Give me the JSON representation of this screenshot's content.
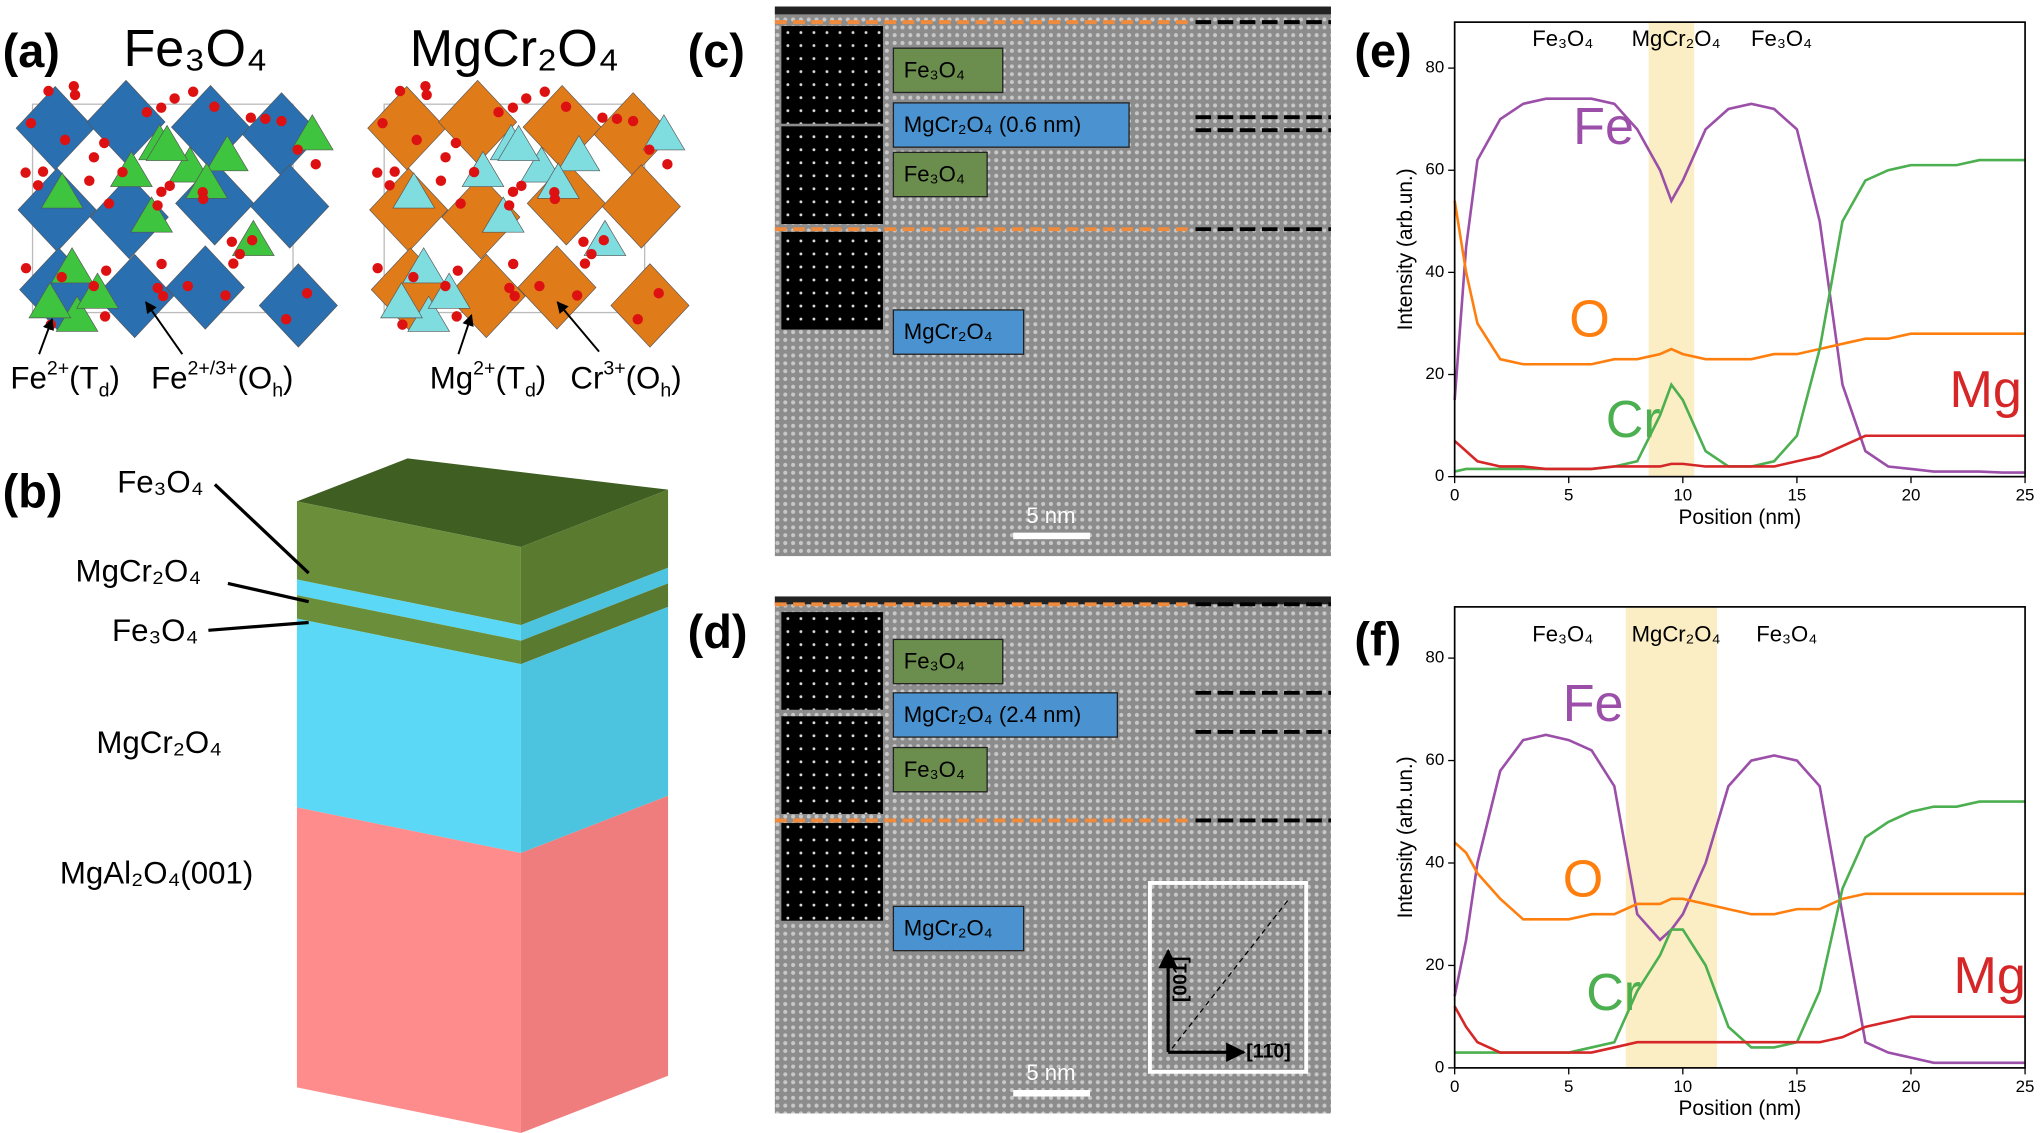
{
  "panels": {
    "a": {
      "label": "(a)",
      "titles": [
        "Fe₃O₄",
        "MgCr₂O₄"
      ],
      "ion_labels": [
        [
          {
            "t": "Fe"
          },
          {
            "sup": "2+"
          },
          {
            "t": "(T"
          },
          {
            "sub": "d"
          },
          {
            "t": ")"
          }
        ],
        [
          {
            "t": "Fe"
          },
          {
            "sup": "2+/3+"
          },
          {
            "t": "(O"
          },
          {
            "sub": "h"
          },
          {
            "t": ")"
          }
        ],
        [
          {
            "t": "Mg"
          },
          {
            "sup": "2+"
          },
          {
            "t": "(T"
          },
          {
            "sub": "d"
          },
          {
            "t": ")"
          }
        ],
        [
          {
            "t": "Cr"
          },
          {
            "sup": "3+"
          },
          {
            "t": "(O"
          },
          {
            "sub": "h"
          },
          {
            "t": ")"
          }
        ]
      ]
    },
    "b": {
      "label": "(b)",
      "layers": [
        "Fe₃O₄",
        "MgCr₂O₄",
        "Fe₃O₄",
        "MgCr₂O₄",
        "MgAl₂O₄(001)"
      ]
    },
    "c": {
      "label": "(c)",
      "boxes": [
        "Fe₃O₄",
        "MgCr₂O₄ (0.6 nm)",
        "Fe₃O₄",
        "MgCr₂O₄"
      ],
      "scale_bar": "5 nm"
    },
    "d": {
      "label": "(d)",
      "boxes": [
        "Fe₃O₄",
        "MgCr₂O₄ (2.4 nm)",
        "Fe₃O₄",
        "MgCr₂O₄"
      ],
      "scale_bar": "5 nm",
      "inset_axes": [
        "[001]",
        "[11̄0]"
      ]
    }
  },
  "chart_data": [
    {
      "type": "line",
      "panel_label": "(e)",
      "top_labels": [
        "Fe₃O₄",
        "MgCr₂O₄",
        "Fe₃O₄"
      ],
      "xlabel": "Position (nm)",
      "ylabel": "Intensity (arb.un.)",
      "xlim": [
        0,
        25
      ],
      "ylim": [
        0,
        89
      ],
      "xticks": [
        0,
        5,
        10,
        15,
        20,
        25
      ],
      "yticks": [
        0,
        20,
        40,
        60,
        80
      ],
      "highlight": [
        8.5,
        10.5
      ],
      "x": [
        0,
        0.5,
        1,
        2,
        3,
        4,
        5,
        6,
        7,
        8,
        9,
        9.5,
        10,
        11,
        12,
        13,
        14,
        15,
        16,
        17,
        18,
        19,
        20,
        21,
        22,
        23,
        24,
        25
      ],
      "series": [
        {
          "name": "Fe",
          "color": "#9b4fa8",
          "values": [
            15,
            45,
            62,
            70,
            73,
            74,
            74,
            74,
            73,
            68,
            60,
            54,
            58,
            68,
            72,
            73,
            72,
            68,
            50,
            18,
            5,
            2,
            1.5,
            1,
            1,
            1,
            0.8,
            0.8
          ]
        },
        {
          "name": "O",
          "color": "#ff7f0e",
          "values": [
            54,
            40,
            30,
            23,
            22,
            22,
            22,
            22,
            23,
            23,
            24,
            25,
            24,
            23,
            23,
            23,
            24,
            24,
            25,
            26,
            27,
            27,
            28,
            28,
            28,
            28,
            28,
            28
          ]
        },
        {
          "name": "Cr",
          "color": "#4caf50",
          "values": [
            1,
            1.5,
            1.5,
            1.5,
            1.5,
            1.5,
            1.5,
            1.5,
            2,
            3,
            12,
            18,
            15,
            5,
            2,
            2,
            3,
            8,
            25,
            50,
            58,
            60,
            61,
            61,
            61,
            62,
            62,
            62
          ]
        },
        {
          "name": "Mg",
          "color": "#d62728",
          "values": [
            7,
            5,
            3,
            2,
            2,
            1.5,
            1.5,
            1.5,
            2,
            2,
            2,
            2.5,
            2.5,
            2,
            2,
            2,
            2,
            3,
            4,
            6,
            8,
            8,
            8,
            8,
            8,
            8,
            8,
            8
          ]
        }
      ]
    },
    {
      "type": "line",
      "panel_label": "(f)",
      "top_labels": [
        "Fe₃O₄",
        "MgCr₂O₄",
        "Fe₃O₄"
      ],
      "xlabel": "Position (nm)",
      "ylabel": "Intensity (arb.un.)",
      "xlim": [
        0,
        25
      ],
      "ylim": [
        0,
        90
      ],
      "xticks": [
        0,
        5,
        10,
        15,
        20,
        25
      ],
      "yticks": [
        0,
        20,
        40,
        60,
        80
      ],
      "highlight": [
        7.5,
        11.5
      ],
      "x": [
        0,
        0.5,
        1,
        2,
        3,
        4,
        5,
        6,
        7,
        8,
        9,
        9.5,
        10,
        11,
        12,
        13,
        14,
        15,
        16,
        17,
        18,
        19,
        20,
        21,
        22,
        23,
        24,
        25
      ],
      "series": [
        {
          "name": "Fe",
          "color": "#9b4fa8",
          "values": [
            14,
            25,
            40,
            58,
            64,
            65,
            64,
            62,
            55,
            30,
            25,
            27,
            30,
            40,
            55,
            60,
            61,
            60,
            55,
            30,
            5,
            3,
            2,
            1,
            1,
            1,
            1,
            1
          ]
        },
        {
          "name": "O",
          "color": "#ff7f0e",
          "values": [
            44,
            42,
            38,
            33,
            29,
            29,
            29,
            30,
            30,
            32,
            32,
            33,
            33,
            32,
            31,
            30,
            30,
            31,
            31,
            33,
            34,
            34,
            34,
            34,
            34,
            34,
            34,
            34
          ]
        },
        {
          "name": "Cr",
          "color": "#4caf50",
          "values": [
            3,
            3,
            3,
            3,
            3,
            3,
            3,
            4,
            5,
            15,
            22,
            27,
            27,
            20,
            8,
            4,
            4,
            5,
            15,
            35,
            45,
            48,
            50,
            51,
            51,
            52,
            52,
            52
          ]
        },
        {
          "name": "Mg",
          "color": "#d62728",
          "values": [
            12,
            8,
            5,
            3,
            3,
            3,
            3,
            3,
            4,
            5,
            5,
            5,
            5,
            5,
            5,
            5,
            5,
            5,
            5,
            6,
            8,
            9,
            10,
            10,
            10,
            10,
            10,
            10
          ]
        }
      ]
    }
  ]
}
